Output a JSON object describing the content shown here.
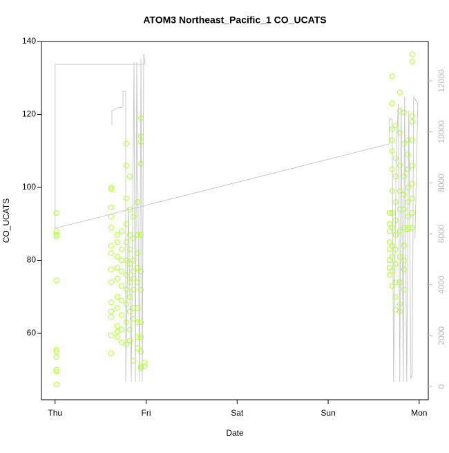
{
  "chart_data": {
    "type": "scatter",
    "title": "ATOM3 Northeast_Pacific_1 CO_UCATS",
    "xlabel": "Date",
    "ylabel": "CO_UCATS",
    "xlim": [
      -0.15,
      4.1
    ],
    "xticks": [
      {
        "value": 0,
        "label": "Thu"
      },
      {
        "value": 1,
        "label": "Fri"
      },
      {
        "value": 2,
        "label": "Sat"
      },
      {
        "value": 3,
        "label": "Sun"
      },
      {
        "value": 4,
        "label": "Mon"
      }
    ],
    "ylim": [
      41.8,
      140
    ],
    "yticks": [
      60,
      80,
      100,
      120,
      140
    ],
    "y2lim": [
      -516,
      13548
    ],
    "y2ticks": [
      0,
      2000,
      4000,
      6000,
      8000,
      10000,
      12000
    ],
    "series": [
      {
        "type": "scatter",
        "color": "#adff2f",
        "x": [
          0.015,
          0.015,
          0.015,
          0.015,
          0.015,
          0.015,
          0.015,
          0.015,
          0.015,
          0.015,
          0.015,
          0.616,
          0.616,
          0.616,
          0.616,
          0.616,
          0.616,
          0.616,
          0.616,
          0.616,
          0.616,
          0.616,
          0.616,
          0.616,
          0.616,
          0.684,
          0.684,
          0.684,
          0.684,
          0.684,
          0.684,
          0.684,
          0.684,
          0.684,
          0.684,
          0.73,
          0.73,
          0.73,
          0.73,
          0.73,
          0.73,
          0.73,
          0.73,
          0.73,
          0.783,
          0.783,
          0.783,
          0.783,
          0.783,
          0.783,
          0.783,
          0.783,
          0.783,
          0.783,
          0.783,
          0.821,
          0.821,
          0.821,
          0.821,
          0.821,
          0.821,
          0.821,
          0.821,
          0.821,
          0.821,
          0.859,
          0.859,
          0.859,
          0.859,
          0.859,
          0.859,
          0.859,
          0.859,
          0.859,
          0.905,
          0.905,
          0.905,
          0.905,
          0.905,
          0.905,
          0.905,
          0.905,
          0.905,
          0.943,
          0.943,
          0.943,
          0.943,
          0.943,
          0.943,
          0.943,
          0.943,
          0.943,
          0.943,
          0.943,
          0.943,
          0.981,
          0.981,
          3.673,
          3.673,
          3.673,
          3.673,
          3.673,
          3.673,
          3.673,
          3.673,
          3.703,
          3.703,
          3.703,
          3.703,
          3.703,
          3.703,
          3.703,
          3.703,
          3.703,
          3.703,
          3.703,
          3.703,
          3.703,
          3.741,
          3.741,
          3.741,
          3.741,
          3.741,
          3.741,
          3.741,
          3.741,
          3.741,
          3.741,
          3.741,
          3.787,
          3.787,
          3.787,
          3.787,
          3.787,
          3.787,
          3.787,
          3.787,
          3.787,
          3.787,
          3.787,
          3.833,
          3.833,
          3.833,
          3.833,
          3.833,
          3.833,
          3.833,
          3.833,
          3.833,
          3.833,
          3.878,
          3.878,
          3.878,
          3.878,
          3.878,
          3.878,
          3.878,
          3.878,
          3.924,
          3.924,
          3.924,
          3.924,
          3.924,
          3.924,
          3.924,
          3.924,
          3.924,
          3.924
        ],
        "values": [
          93,
          88,
          87,
          86.5,
          74.5,
          55.5,
          55,
          53.5,
          50,
          49.5,
          46,
          100,
          99.5,
          94.5,
          92,
          89,
          84,
          82,
          77.5,
          74,
          68.5,
          66,
          64.5,
          59.5,
          54.5,
          87,
          85,
          81,
          78,
          75,
          70,
          67,
          62,
          60.5,
          59,
          88,
          83,
          80,
          77,
          73,
          69,
          65,
          61,
          57.5,
          112,
          106,
          97,
          90,
          85,
          80,
          76,
          72,
          68,
          63,
          57,
          103,
          94,
          87,
          83,
          79,
          74,
          70,
          66,
          61,
          58,
          92,
          86,
          80,
          77,
          75,
          72,
          67,
          64,
          52.5,
          96,
          87,
          82,
          78,
          74,
          67,
          63,
          59,
          56,
          119,
          114,
          112.5,
          106.5,
          87,
          77,
          72,
          63,
          59,
          55,
          51,
          50.5,
          52,
          51,
          93,
          90,
          88,
          85,
          83,
          80,
          78,
          76,
          130.5,
          123,
          116,
          113,
          110,
          105,
          99,
          93,
          89,
          84,
          81,
          77,
          73,
          117,
          108,
          103,
          96,
          91,
          87,
          83,
          79,
          74,
          70,
          66.5,
          126,
          121,
          115,
          106,
          99,
          94,
          88,
          81,
          74,
          68,
          66,
          120.5,
          112,
          103,
          98,
          94,
          89,
          84,
          80,
          77.5,
          72,
          113,
          109,
          105,
          100,
          96,
          92,
          89,
          88.5,
          136.5,
          134.5,
          119.5,
          118,
          113,
          106,
          101,
          97,
          93,
          89
        ]
      },
      {
        "type": "line",
        "axis": "y2",
        "color": "#c8c8c8",
        "x": [
          0.624,
          0.624,
          0.684,
          0.745,
          0.745,
          0.776,
          0.776,
          0.806,
          0.837,
          0.867,
          0.882,
          0.897,
          0.928,
          0.943,
          0.958,
          0.973,
          0.989,
          0.973,
          0,
          0,
          3.673,
          3.673,
          3.703,
          3.719,
          3.749,
          3.772,
          3.787,
          3.802,
          3.825,
          3.84,
          3.863,
          3.886,
          3.909,
          3.924,
          3.939,
          3.985,
          3.954
        ],
        "values": [
          10290,
          10833,
          10941,
          10969,
          11593,
          11593,
          190,
          7032,
          190,
          12733,
          190,
          12733,
          190,
          12869,
          190,
          13059,
          12679,
          12652,
          12652,
          6217,
          9530,
          10507,
          10507,
          190,
          9475,
          11104,
          190,
          10969,
          190,
          11376,
          190,
          10833,
          299,
          516,
          11376,
          11104,
          5810
        ]
      }
    ]
  }
}
